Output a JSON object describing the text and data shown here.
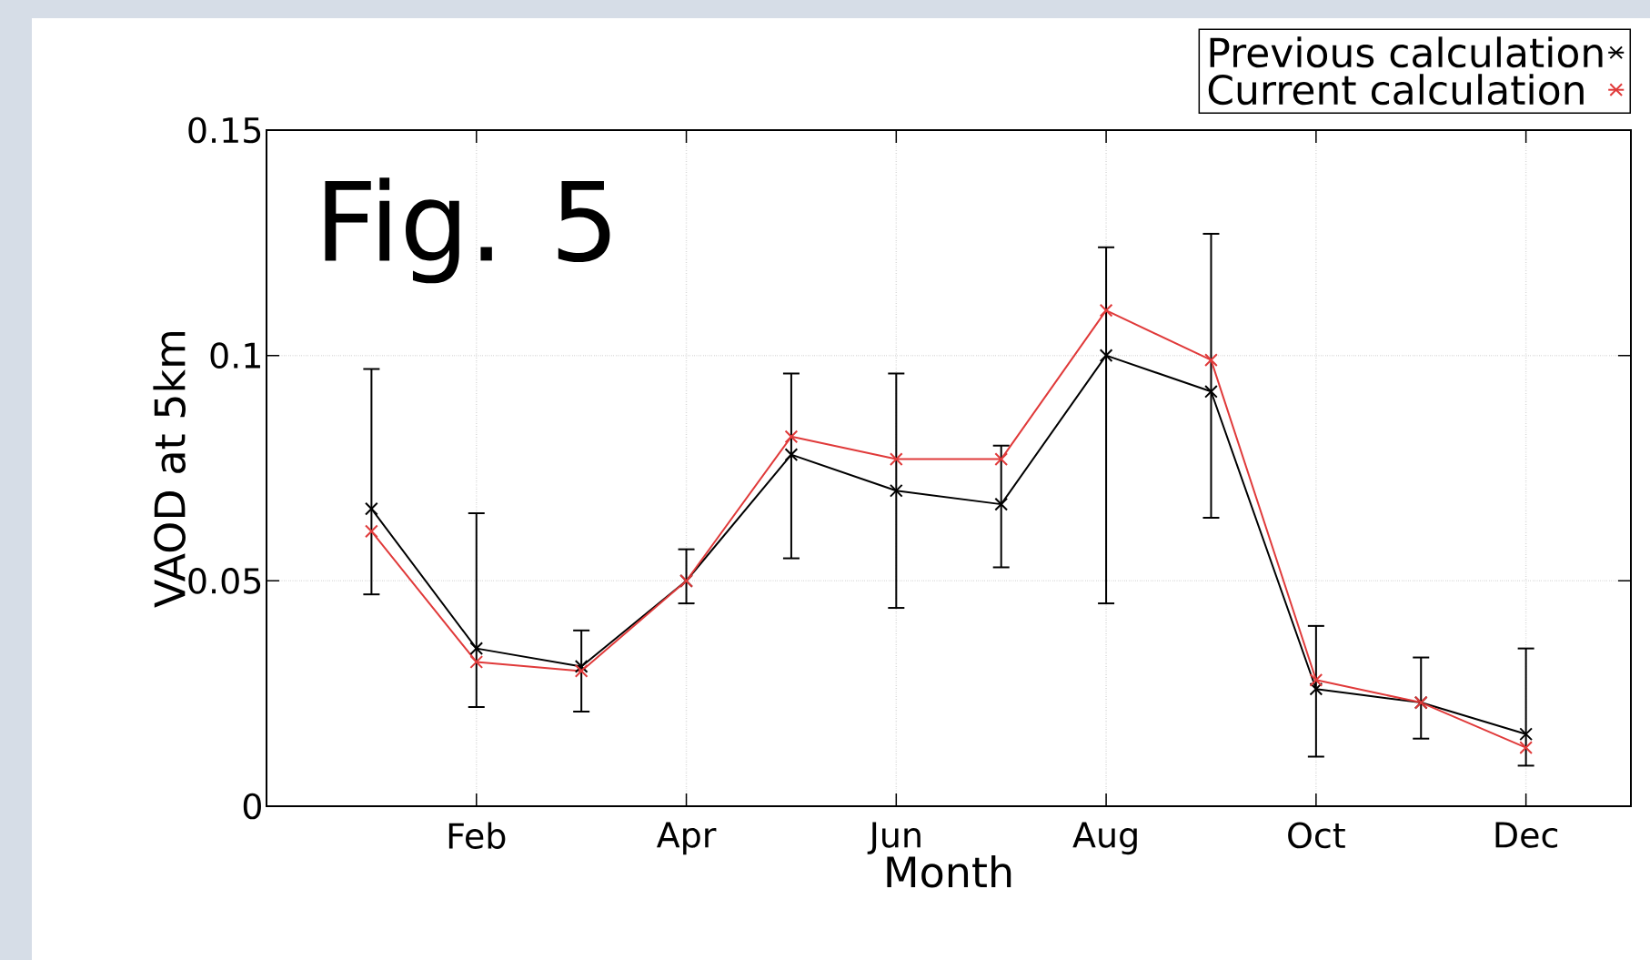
{
  "chart_data": {
    "type": "line",
    "xlabel": "Month",
    "ylabel": "VAOD at 5km",
    "annotations": [
      "Fig. 5"
    ],
    "categories": [
      null,
      "Feb",
      null,
      "Apr",
      null,
      "Jun",
      null,
      "Aug",
      null,
      "Oct",
      null,
      "Dec"
    ],
    "ylim": [
      0,
      0.15
    ],
    "yticks": [
      0,
      0.05,
      0.1,
      0.15
    ],
    "grid": true,
    "legend": "top right",
    "line_style": "solid",
    "series": [
      {
        "name": "Previous calculation",
        "color": "#000000",
        "marker": "cross",
        "values": [
          0.066,
          0.035,
          0.031,
          0.05,
          0.078,
          0.07,
          0.067,
          0.1,
          0.092,
          0.026,
          0.023,
          0.016
        ],
        "errors": [
          [
            0.047,
            0.097
          ],
          [
            0.022,
            0.065
          ],
          [
            0.021,
            0.039
          ],
          [
            0.045,
            0.057
          ],
          [
            0.055,
            0.096
          ],
          [
            0.044,
            0.096
          ],
          [
            0.053,
            0.08
          ],
          [
            0.045,
            0.124
          ],
          [
            0.064,
            0.127
          ],
          [
            0.011,
            0.04
          ],
          [
            0.015,
            0.033
          ],
          [
            0.009,
            0.035
          ]
        ]
      },
      {
        "name": "Current calculation",
        "color": "#e03a3a",
        "marker": "cross",
        "values": [
          0.061,
          0.032,
          0.03,
          0.05,
          0.082,
          0.077,
          0.077,
          0.11,
          0.099,
          0.028,
          0.023,
          0.013
        ]
      }
    ]
  }
}
